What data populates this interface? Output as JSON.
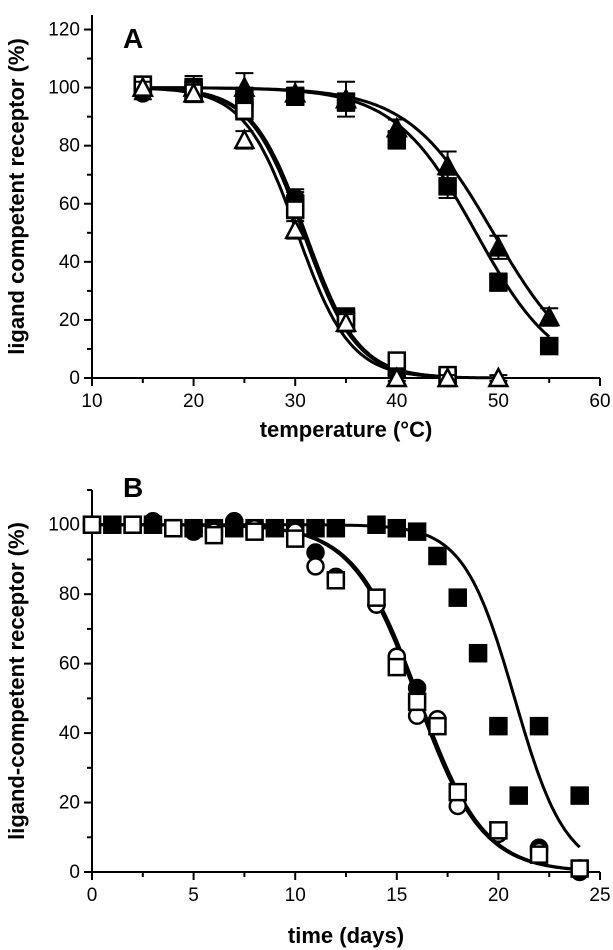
{
  "chart_data": [
    {
      "type": "scatter",
      "panel_label": "A",
      "xlabel": "temperature (°C)",
      "ylabel": "ligand competent receptor (%)",
      "xlim": [
        10,
        60
      ],
      "ylim": [
        0,
        125
      ],
      "xticks": [
        10,
        20,
        30,
        40,
        50,
        60
      ],
      "yticks": [
        0,
        20,
        40,
        60,
        80,
        100,
        120
      ],
      "grid": false,
      "legend": "none",
      "series": [
        {
          "marker": "square-filled",
          "x": [
            15,
            20,
            25,
            30,
            35,
            40,
            45,
            50,
            55
          ],
          "y": [
            101,
            99,
            97,
            97,
            95,
            82,
            66,
            33,
            11
          ],
          "error": [
            2,
            3,
            3,
            3,
            3,
            3,
            4,
            3,
            2
          ],
          "fit": {
            "top": 100,
            "tm": 47.8,
            "slope": 4.0
          }
        },
        {
          "marker": "triangle-filled",
          "x": [
            15,
            20,
            25,
            30,
            35,
            40,
            45,
            50,
            55
          ],
          "y": [
            100,
            100,
            100,
            98,
            96,
            86,
            73,
            45,
            21
          ],
          "error": [
            2,
            4,
            5,
            4,
            6,
            3,
            5,
            4,
            3
          ],
          "fit": {
            "top": 100,
            "tm": 49.5,
            "slope": 4.2
          }
        },
        {
          "marker": "square-filled",
          "x": [
            15,
            20,
            25,
            30,
            35,
            40,
            45
          ],
          "y": [
            101,
            100,
            93,
            60,
            21,
            3,
            0
          ],
          "error": [
            2,
            3,
            3,
            4,
            3,
            2,
            1
          ],
          "fit": {
            "top": 100,
            "tm": 30.8,
            "slope": 2.6
          }
        },
        {
          "marker": "circle-filled",
          "x": [
            15,
            20,
            25,
            30,
            35,
            40,
            45
          ],
          "y": [
            98,
            100,
            94,
            62,
            20,
            5,
            0
          ],
          "error": [
            2,
            3,
            3,
            3,
            3,
            2,
            1
          ],
          "fit": {
            "top": 100,
            "tm": 31.0,
            "slope": 2.6
          }
        },
        {
          "marker": "square-open",
          "x": [
            15,
            20,
            25,
            30,
            35,
            40,
            45
          ],
          "y": [
            101,
            99,
            92,
            58,
            20,
            6,
            1
          ],
          "error": [
            2,
            3,
            3,
            3,
            3,
            2,
            1
          ],
          "fit": null
        },
        {
          "marker": "triangle-open",
          "x": [
            15,
            20,
            25,
            30,
            35,
            40,
            45,
            50
          ],
          "y": [
            100,
            98,
            82,
            51,
            19,
            0,
            0,
            0
          ],
          "error": [
            2,
            3,
            3,
            3,
            3,
            1,
            1,
            1
          ],
          "fit": {
            "top": 100,
            "tm": 30.2,
            "slope": 2.6
          }
        }
      ]
    },
    {
      "type": "scatter",
      "panel_label": "B",
      "xlabel": "time (days)",
      "ylabel": "ligand-competent receptor (%)",
      "xlim": [
        0,
        25
      ],
      "ylim": [
        0,
        110
      ],
      "xticks": [
        0,
        5,
        10,
        15,
        20,
        25
      ],
      "yticks": [
        0,
        20,
        40,
        60,
        80,
        100
      ],
      "grid": false,
      "legend": "none",
      "series": [
        {
          "marker": "square-filled",
          "x": [
            0,
            1,
            2,
            3,
            4,
            5,
            6,
            7,
            8,
            9,
            10,
            11,
            12,
            14,
            15,
            16,
            17,
            18,
            19,
            20,
            21,
            22,
            24
          ],
          "y": [
            100,
            100,
            100,
            100,
            99,
            99,
            99,
            99,
            99,
            99,
            99,
            99,
            99,
            100,
            99,
            98,
            91,
            79,
            63,
            42,
            22,
            42,
            22
          ],
          "fit": {
            "top": 100,
            "tm": 20.8,
            "slope": 1.25
          }
        },
        {
          "marker": "circle-filled",
          "x": [
            0,
            1,
            2,
            3,
            4,
            5,
            7,
            8,
            10,
            11,
            12,
            14,
            15,
            16,
            17,
            18,
            20,
            22,
            24
          ],
          "y": [
            100,
            100,
            100,
            101,
            99,
            98,
            101,
            99,
            98,
            92,
            85,
            77,
            62,
            53,
            42,
            22,
            11,
            7,
            0
          ],
          "fit": {
            "top": 100,
            "tm": 16.0,
            "slope": 1.6
          }
        },
        {
          "marker": "circle-open",
          "x": [
            0,
            2,
            4,
            6,
            8,
            10,
            11,
            12,
            14,
            15,
            16,
            17,
            18,
            20,
            22,
            24
          ],
          "y": [
            100,
            100,
            99,
            98,
            99,
            98,
            88,
            84,
            77,
            62,
            45,
            44,
            19,
            11,
            6,
            1
          ],
          "fit": null
        },
        {
          "marker": "square-open",
          "x": [
            0,
            2,
            4,
            6,
            8,
            10,
            12,
            14,
            15,
            16,
            17,
            18,
            20,
            22,
            24
          ],
          "y": [
            100,
            100,
            99,
            97,
            98,
            96,
            84,
            79,
            59,
            49,
            42,
            23,
            12,
            5,
            1
          ],
          "fit": {
            "top": 100,
            "tm": 16.1,
            "slope": 1.6
          }
        }
      ]
    }
  ]
}
